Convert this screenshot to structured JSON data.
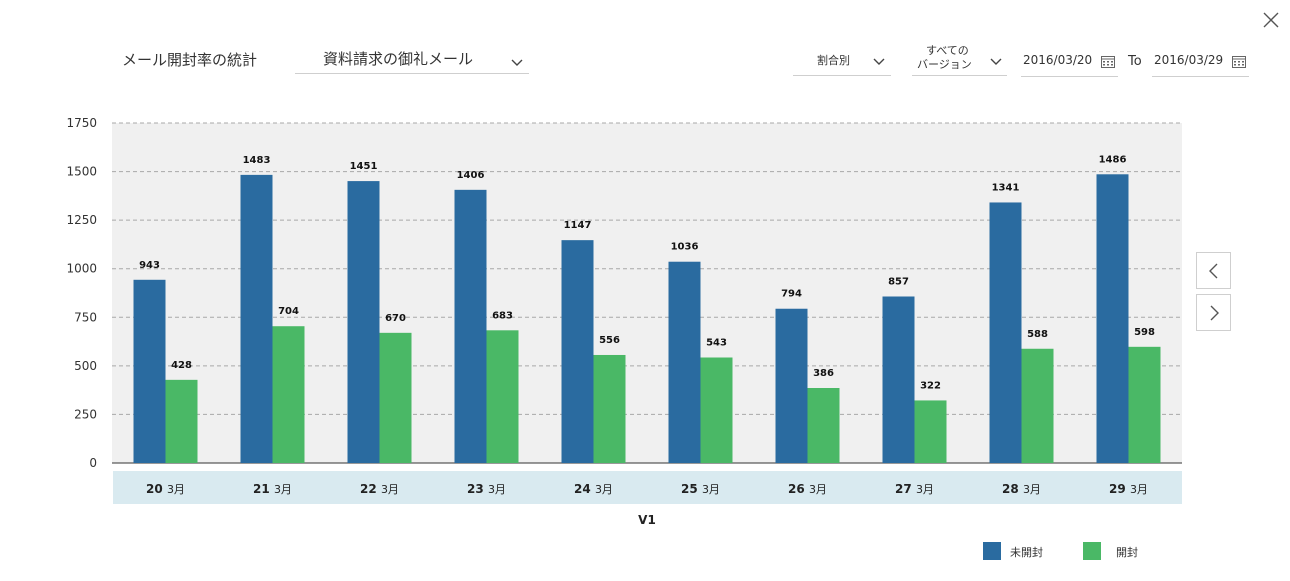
{
  "header": {
    "title": "メール開封率の統計",
    "mail_select": "資料請求の御礼メール",
    "ratio_select": "割合別",
    "version_select_line1": "すべての",
    "version_select_line2": "バージョン",
    "date_from": "2016/03/20",
    "to_label": "To",
    "date_to": "2016/03/29"
  },
  "icons": {
    "close": "close-icon",
    "calendar": "calendar-icon",
    "dropdown": "chevron-down-icon",
    "prev": "chevron-left-icon",
    "next": "chevron-right-icon"
  },
  "colors": {
    "unopened": "#2a6ba0",
    "opened": "#4ab866",
    "plot_bg": "#f0f0f0",
    "axis_band": "#d9eaf0"
  },
  "chart_data": {
    "type": "bar",
    "categories": [
      {
        "day": "20",
        "month": "3月"
      },
      {
        "day": "21",
        "month": "3月"
      },
      {
        "day": "22",
        "month": "3月"
      },
      {
        "day": "23",
        "month": "3月"
      },
      {
        "day": "24",
        "month": "3月"
      },
      {
        "day": "25",
        "month": "3月"
      },
      {
        "day": "26",
        "month": "3月"
      },
      {
        "day": "27",
        "month": "3月"
      },
      {
        "day": "28",
        "month": "3月"
      },
      {
        "day": "29",
        "month": "3月"
      }
    ],
    "series": [
      {
        "name": "未開封",
        "values": [
          943,
          1483,
          1451,
          1406,
          1147,
          1036,
          794,
          857,
          1341,
          1486
        ]
      },
      {
        "name": "開封",
        "values": [
          428,
          704,
          670,
          683,
          556,
          543,
          386,
          322,
          588,
          598
        ]
      }
    ],
    "xlabel": "V1",
    "ylim": [
      0,
      1750
    ],
    "yticks": [
      0,
      250,
      500,
      750,
      1000,
      1250,
      1500,
      1750
    ],
    "grid": true,
    "legend_position": "bottom-right"
  }
}
